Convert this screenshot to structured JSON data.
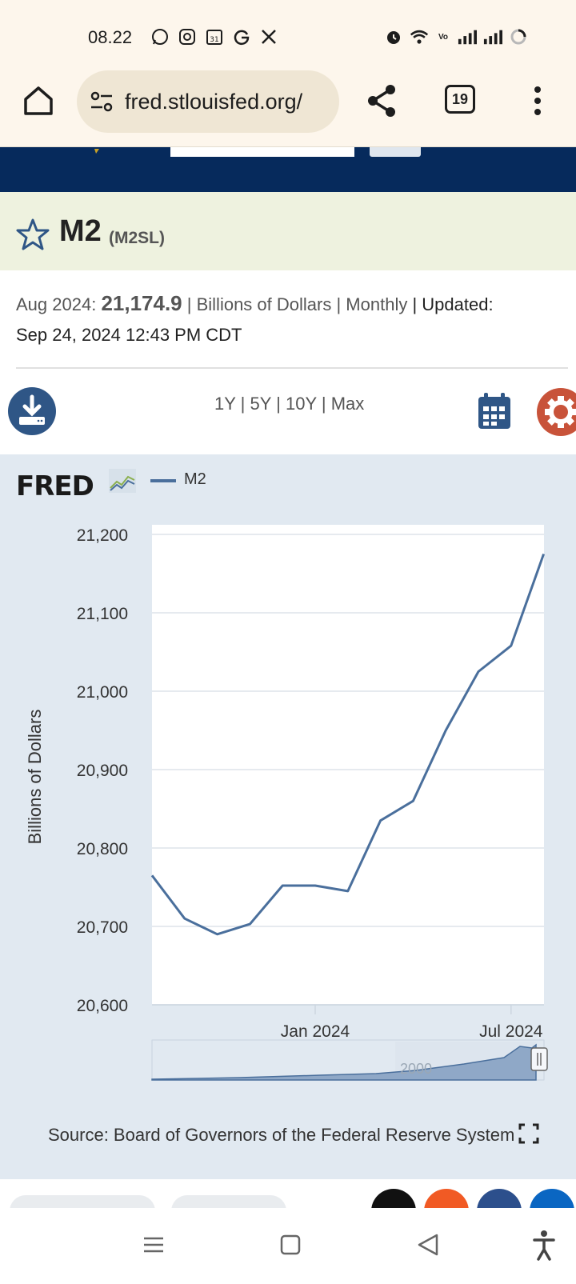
{
  "status_bar": {
    "time": "08.22",
    "left_icons": [
      "whatsapp-icon",
      "instagram-icon",
      "calendar-31-icon",
      "google-icon",
      "x-icon"
    ],
    "right_icons": [
      "alarm-icon",
      "wifi-icon",
      "volte-icon",
      "signal-icon",
      "signal-icon",
      "battery-icon"
    ],
    "calendar_day": "31"
  },
  "browser": {
    "url": "fred.stlouisfed.org/",
    "tab_count": "19"
  },
  "series": {
    "title": "M2",
    "code": "(M2SL)",
    "period": "Aug 2024:",
    "value": "21,174.9",
    "units": "| Billions of Dollars |",
    "frequency": "Monthly",
    "updated_label": "| Updated:",
    "updated": "Sep 24, 2024 12:43 PM CDT"
  },
  "controls": {
    "ranges": [
      "1Y",
      "5Y",
      "10Y",
      "Max"
    ],
    "separator": "|"
  },
  "chart_data": {
    "type": "line",
    "logo": "FRED",
    "legend": [
      "M2"
    ],
    "ylabel": "Billions of Dollars",
    "ylim": [
      20600,
      21200
    ],
    "yticks": [
      "20,600",
      "20,700",
      "20,800",
      "20,900",
      "21,000",
      "21,100",
      "21,200"
    ],
    "xticks": [
      "Jan 2024",
      "Jul 2024"
    ],
    "series": [
      {
        "name": "M2",
        "color": "#4a6f9c",
        "x": [
          "2023-08",
          "2023-09",
          "2023-10",
          "2023-11",
          "2023-12",
          "2024-01",
          "2024-02",
          "2024-03",
          "2024-04",
          "2024-05",
          "2024-06",
          "2024-07",
          "2024-08"
        ],
        "values": [
          20765,
          20710,
          20690,
          20703,
          20752,
          20752,
          20745,
          20835,
          20860,
          20950,
          21025,
          21058,
          21175
        ]
      }
    ],
    "overview_label": "2000",
    "source": "Source: Board of Governors of the Federal Reserve System"
  }
}
